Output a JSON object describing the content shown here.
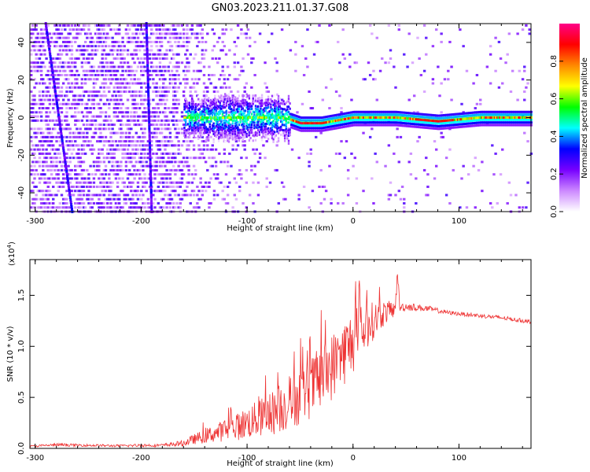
{
  "title": "GN03.2023.211.01.37.G08",
  "chart_data": [
    {
      "type": "heatmap",
      "name": "spectrogram",
      "xlabel": "Height of straight line (km)",
      "ylabel": "Frequency (Hz)",
      "xlim": [
        -305,
        168
      ],
      "ylim": [
        -50,
        50
      ],
      "xticks": [
        -300,
        -200,
        -100,
        0,
        100
      ],
      "xtick_labels": [
        "-300",
        "-200",
        "-100",
        "0",
        "100"
      ],
      "yticks": [
        -40,
        -20,
        0,
        20,
        40
      ],
      "ytick_labels": [
        "-40",
        "-20",
        "0",
        "20",
        "40"
      ],
      "colorbar": {
        "label": "Normalized spectral amplitude",
        "range": [
          0,
          1
        ],
        "ticks": [
          0.0,
          0.2,
          0.4,
          0.6,
          0.8
        ],
        "tick_labels": [
          "0.0",
          "0.2",
          "0.4",
          "0.6",
          "0.8"
        ],
        "colors": [
          "#ffffff",
          "#cc88ff",
          "#7700ff",
          "#0000ff",
          "#00ffff",
          "#00ff00",
          "#ffff00",
          "#ff8800",
          "#ff0000",
          "#ff0088"
        ]
      },
      "features": {
        "diagonal_streaks": [
          {
            "x": [
              -290,
              -265
            ],
            "y": [
              50,
              -50
            ]
          },
          {
            "x": [
              -195,
              -190
            ],
            "y": [
              50,
              -50
            ]
          }
        ],
        "carrier_line": {
          "x": [
            -160,
            -140,
            -120,
            -100,
            -80,
            -70,
            -60,
            -50,
            -40,
            -30,
            -20,
            -10,
            0,
            20,
            40,
            60,
            80,
            100,
            120,
            140,
            168
          ],
          "y": [
            0,
            0,
            0,
            0,
            0,
            0,
            -1,
            -3,
            -3,
            -3,
            -2,
            -1,
            0,
            0,
            0,
            -1,
            -2,
            -1,
            0,
            0,
            0
          ]
        }
      }
    },
    {
      "type": "line",
      "name": "snr",
      "xlabel": "Height of straight line (km)",
      "ylabel": "SNR (10 * v/v)",
      "y_multiplier_label": "(x10",
      "y_multiplier_exponent": "4",
      "y_multiplier_close": ")",
      "xlim": [
        -305,
        168
      ],
      "ylim": [
        0,
        18500
      ],
      "xticks": [
        -300,
        -200,
        -100,
        0,
        100
      ],
      "xtick_labels": [
        "-300",
        "-200",
        "-100",
        "0",
        "100"
      ],
      "yticks": [
        0,
        5000,
        10000,
        15000
      ],
      "ytick_labels": [
        "0.0",
        "0.5",
        "1.0",
        "1.5"
      ],
      "line_color": "#ee3333",
      "series": [
        {
          "x": [
            -305,
            -280,
            -250,
            -220,
            -200,
            -180,
            -160,
            -150,
            -140,
            -130,
            -120,
            -110,
            -100,
            -90,
            -80,
            -70,
            -60,
            -50,
            -40,
            -30,
            -20,
            -10,
            0,
            10,
            20,
            30,
            40,
            42,
            44,
            50,
            60,
            70,
            80,
            90,
            100,
            120,
            140,
            168
          ],
          "values": [
            200,
            350,
            300,
            250,
            300,
            300,
            500,
            900,
            1200,
            1500,
            1800,
            2100,
            2500,
            2900,
            3300,
            3800,
            4400,
            5100,
            5900,
            6900,
            8000,
            9200,
            10500,
            11600,
            12600,
            13300,
            13700,
            17500,
            13800,
            13900,
            13800,
            13700,
            13500,
            13300,
            13200,
            13000,
            12800,
            12400
          ],
          "noise": [
            100,
            150,
            120,
            120,
            150,
            150,
            300,
            500,
            700,
            900,
            1100,
            1300,
            1600,
            1800,
            2100,
            2400,
            2600,
            2800,
            3000,
            3200,
            3300,
            3300,
            3200,
            2600,
            1800,
            1200,
            700,
            600,
            500,
            400,
            350,
            300,
            250,
            200,
            200,
            200,
            200,
            200
          ]
        }
      ]
    }
  ]
}
